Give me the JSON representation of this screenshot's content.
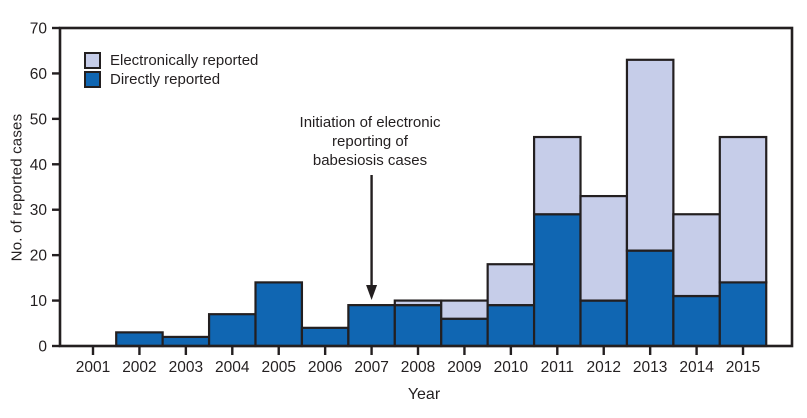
{
  "chart_data": {
    "type": "bar",
    "stacked": true,
    "title": "",
    "xlabel": "Year",
    "ylabel": "No. of reported cases",
    "ylim": [
      0,
      70
    ],
    "yticks": [
      0,
      10,
      20,
      30,
      40,
      50,
      60,
      70
    ],
    "categories": [
      "2001",
      "2002",
      "2003",
      "2004",
      "2005",
      "2006",
      "2007",
      "2008",
      "2009",
      "2010",
      "2011",
      "2012",
      "2013",
      "2014",
      "2015"
    ],
    "series": [
      {
        "name": "Electronically reported",
        "color": "#C6CDE9",
        "values": [
          0,
          0,
          0,
          0,
          0,
          0,
          0,
          1,
          4,
          9,
          17,
          23,
          42,
          18,
          32
        ]
      },
      {
        "name": "Directly reported",
        "color": "#1066B2",
        "values": [
          0,
          3,
          2,
          7,
          14,
          4,
          9,
          9,
          6,
          9,
          29,
          10,
          21,
          11,
          14
        ]
      }
    ],
    "totals": [
      0,
      3,
      2,
      7,
      14,
      4,
      9,
      10,
      10,
      18,
      46,
      33,
      63,
      29,
      46
    ],
    "stack_order_bottom_to_top": [
      "Directly reported",
      "Electronically reported"
    ],
    "legend_position": "upper-left-inside",
    "grid": false,
    "annotation": {
      "text": "Initiation of electronic\nreporting of\nbabesiosis cases",
      "arrow_points_to_year": "2007"
    },
    "ink_color": "#231F20",
    "background": "#FFFFFF"
  }
}
